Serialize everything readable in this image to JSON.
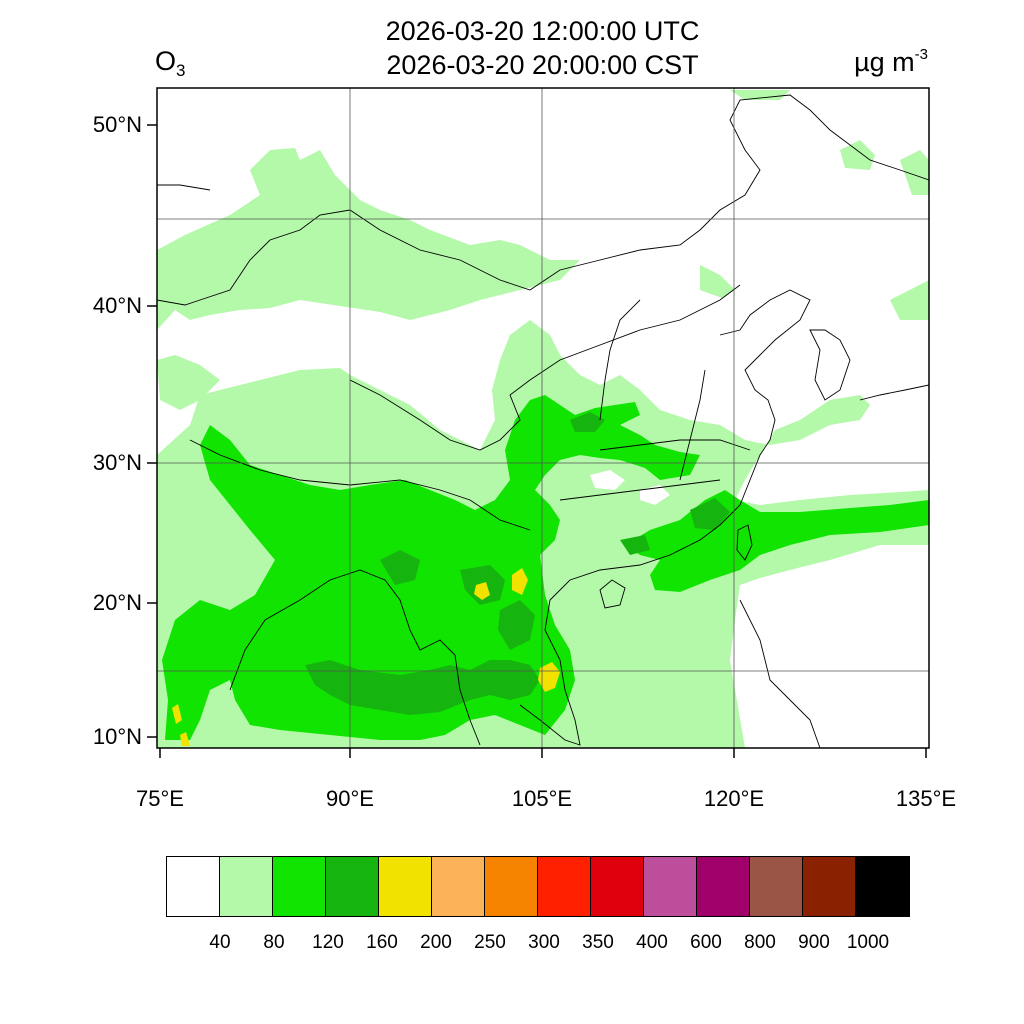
{
  "header": {
    "time_utc": "2026-03-20 12:00:00 UTC",
    "time_local": "2026-03-20 20:00:00 CST",
    "species_main": "O",
    "species_sub": "3",
    "units_main": "µg m",
    "units_exp": "-3"
  },
  "map": {
    "region": "East and South Asia",
    "projection": "lat-lon",
    "lat_range": [
      9,
      52
    ],
    "lon_range": [
      75,
      135
    ],
    "lat_labels": [
      "10°N",
      "20°N",
      "30°N",
      "40°N",
      "50°N"
    ],
    "lon_labels": [
      "75°E",
      "90°E",
      "105°E",
      "120°E",
      "135°E"
    ]
  },
  "colorbar": {
    "colors": [
      "#ffffff",
      "#b3f9a9",
      "#10e400",
      "#16b40f",
      "#f2e200",
      "#fcb259",
      "#f58300",
      "#ff2000",
      "#e0000b",
      "#bc4e9b",
      "#a0006a",
      "#9a5546",
      "#8a2100",
      "#000000"
    ],
    "labels": [
      "40",
      "80",
      "120",
      "160",
      "200",
      "250",
      "300",
      "350",
      "400",
      "600",
      "800",
      "900",
      "1000"
    ]
  }
}
